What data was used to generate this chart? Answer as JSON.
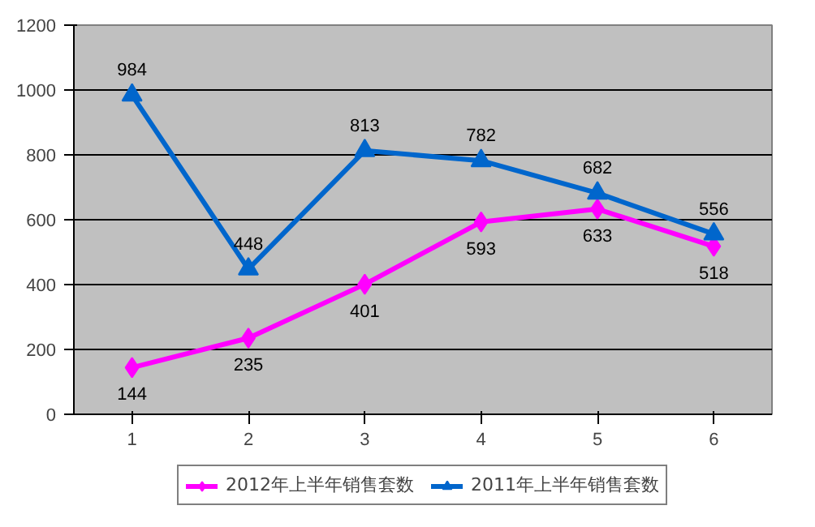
{
  "chart_data": {
    "type": "line",
    "categories": [
      "1",
      "2",
      "3",
      "4",
      "5",
      "6"
    ],
    "series": [
      {
        "name": "2012年上半年销售套数",
        "color": "#ff00ff",
        "marker": "diamond",
        "values": [
          144,
          235,
          401,
          593,
          633,
          518
        ]
      },
      {
        "name": "2011年上半年销售套数",
        "color": "#0066cc",
        "marker": "triangle",
        "values": [
          984,
          448,
          813,
          782,
          682,
          556
        ]
      }
    ],
    "ylim": [
      0,
      1200
    ],
    "yticks": [
      0,
      200,
      400,
      600,
      800,
      1000,
      1200
    ],
    "grid": "y",
    "legend": "bottom",
    "data_labels": true
  }
}
